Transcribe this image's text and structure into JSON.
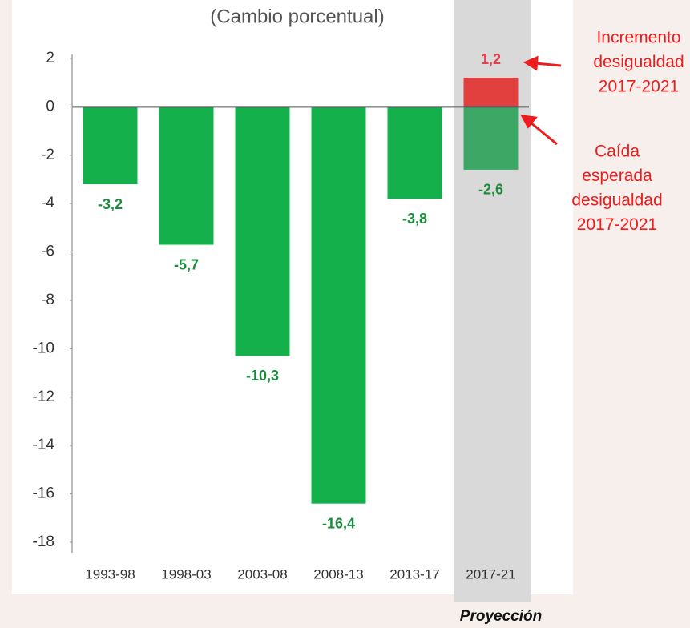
{
  "chart_data": {
    "type": "bar",
    "subtitle": "(Cambio porcentual)",
    "categories": [
      "1993-98",
      "1998-03",
      "2003-08",
      "2008-13",
      "2013-17",
      "2017-21"
    ],
    "values": [
      -3.2,
      -5.7,
      -10.3,
      -16.4,
      -3.8,
      -2.6
    ],
    "value_labels": [
      "-3,2",
      "-5,7",
      "-10,3",
      "-16,4",
      "-3,8",
      "-2,6"
    ],
    "colors": [
      "#13b04b",
      "#13b04b",
      "#13b04b",
      "#13b04b",
      "#13b04b",
      "#3da866"
    ],
    "label_color": "#1a8c3c",
    "projection": {
      "value": 1.2,
      "value_label": "1,2",
      "color": "#e2403f",
      "label_color": "#e2404a",
      "band_label": "Proyección"
    },
    "annotations": [
      {
        "lines": [
          "Incremento",
          "desigualdad",
          "2017-2021"
        ]
      },
      {
        "lines": [
          "Caída",
          "esperada",
          "desigualdad",
          "2017-2021"
        ]
      }
    ],
    "ylim": [
      -18,
      2
    ],
    "yticks": [
      2,
      0,
      -2,
      -4,
      -6,
      -8,
      -10,
      -12,
      -14,
      -16,
      -18
    ],
    "grid": false
  }
}
